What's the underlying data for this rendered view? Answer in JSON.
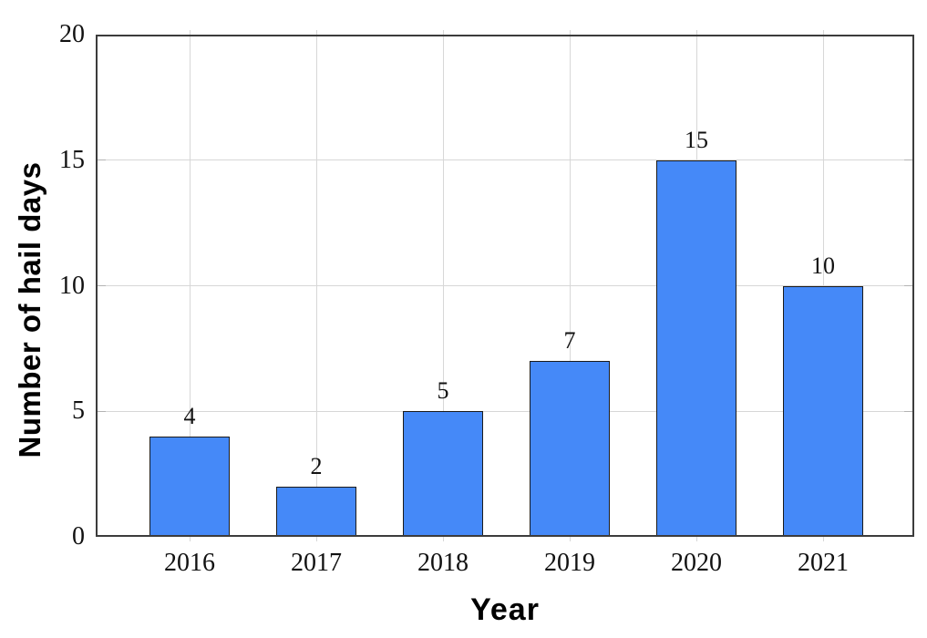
{
  "chart_data": {
    "type": "bar",
    "title": "",
    "xlabel": "Year",
    "ylabel": "Number of hail days",
    "categories": [
      "2016",
      "2017",
      "2018",
      "2019",
      "2020",
      "2021"
    ],
    "values": [
      4,
      2,
      5,
      7,
      15,
      10
    ],
    "yticks": [
      0,
      5,
      10,
      15,
      20
    ],
    "ylim": [
      0,
      20
    ],
    "grid": true,
    "legend": false,
    "bar_value_labels": [
      "4",
      "2",
      "5",
      "7",
      "15",
      "10"
    ],
    "colors": {
      "bar_fill": "#4589f8",
      "bar_border": "#1b1b1b",
      "grid": "#d7d7d7",
      "grid_tick": "#b3b3b3",
      "axis_border": "#3c3c3c",
      "text": "#111111",
      "background": "#ffffff"
    }
  }
}
